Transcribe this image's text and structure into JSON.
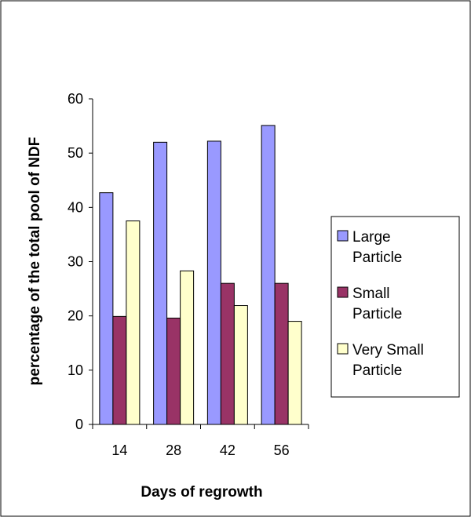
{
  "colors": {
    "large_particle": "#9999ff",
    "small_particle": "#993366",
    "very_small_particle": "#ffffcc",
    "outline": "#000000"
  },
  "chart_data": {
    "type": "bar",
    "title": "",
    "xlabel": "Days of regrowth",
    "ylabel": "percentage of the total pool of NDF",
    "categories": [
      "14",
      "28",
      "42",
      "56"
    ],
    "ylim": [
      0,
      60
    ],
    "yticks": [
      "0",
      "10",
      "20",
      "30",
      "40",
      "50",
      "60"
    ],
    "grid": false,
    "legend_position": "right",
    "series": [
      {
        "name": "Large Particle",
        "legend_lines": [
          "Large",
          "Particle"
        ],
        "color_key": "large_particle",
        "values": [
          42.7,
          52.0,
          52.2,
          55.1
        ]
      },
      {
        "name": "Small Particle",
        "legend_lines": [
          "Small",
          "Particle"
        ],
        "color_key": "small_particle",
        "values": [
          19.9,
          19.6,
          26.0,
          26.0
        ]
      },
      {
        "name": "Very Small Particle",
        "legend_lines": [
          "Very Small",
          "Particle"
        ],
        "color_key": "very_small_particle",
        "values": [
          37.5,
          28.3,
          21.9,
          19.0
        ]
      }
    ]
  }
}
